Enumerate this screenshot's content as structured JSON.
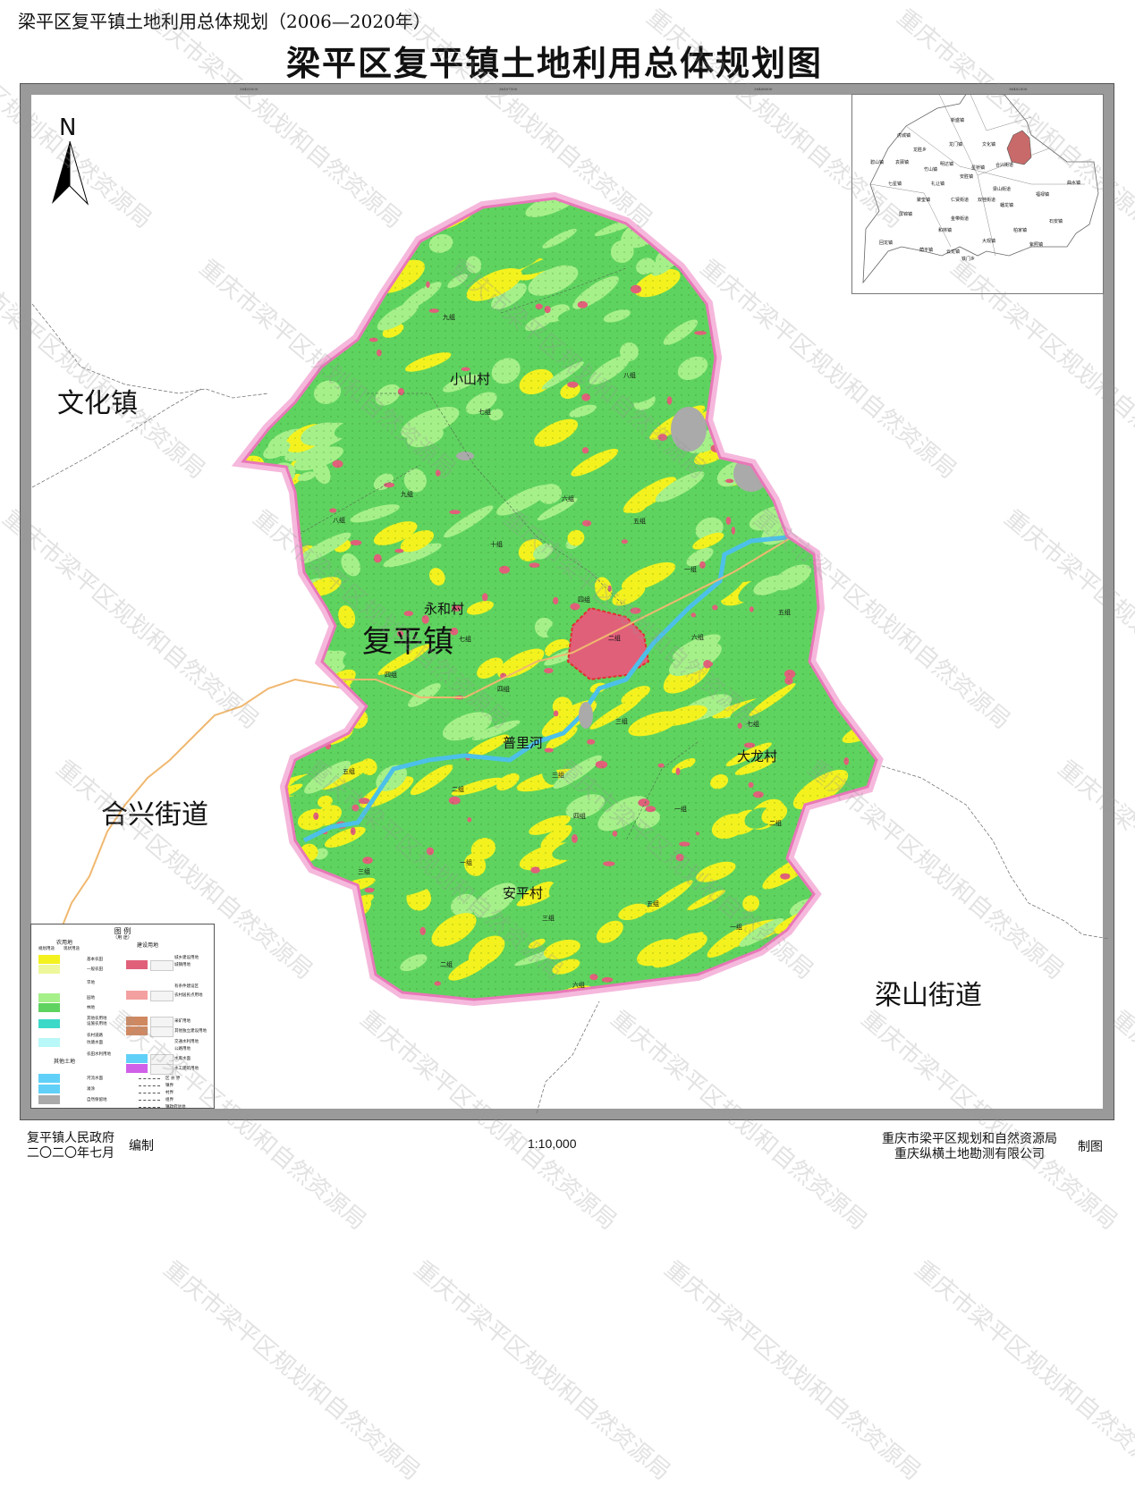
{
  "header": {
    "subtitle": "梁平区复平镇土地利用总体规划（2006—2020年）",
    "title": "梁平区复平镇土地利用总体规划图"
  },
  "north_arrow": {
    "label": "N",
    "icon": "north-arrow-icon"
  },
  "neighbors": {
    "wenhua": "文化镇",
    "hexing": "合兴街道",
    "liangshan": "梁山街道"
  },
  "map_labels": {
    "town": "复平镇",
    "river": "普里河",
    "villages": [
      "小山村",
      "永和村",
      "大龙村",
      "安平村"
    ],
    "groups": [
      "九组",
      "七组",
      "八组",
      "九组",
      "八组",
      "六组",
      "五组",
      "十组",
      "一组",
      "四组",
      "二组",
      "六组",
      "七组",
      "四组",
      "五组",
      "三组",
      "四组",
      "五组",
      "二组",
      "三组",
      "四组",
      "七组",
      "一组",
      "三组",
      "二组",
      "一组",
      "五组",
      "三组",
      "一组",
      "二组",
      "六组"
    ]
  },
  "colors": {
    "boundary": "#f08cc0",
    "forest": "#5fd35f",
    "orchard": "#a6f08a",
    "farmland": "#f4f21e",
    "general_farmland": "#eef79a",
    "urban": "#e0607a",
    "rural_residential": "#f4a0a0",
    "water": "#55c8ee",
    "river": "#4cc0e8",
    "other": "#aaaaaa",
    "road": "#f0b870"
  },
  "inset": {
    "highlight": "复平镇",
    "towns": [
      "新盛镇",
      "虎城镇",
      "龙门镇",
      "文化镇",
      "龙胜乡",
      "碧山镇",
      "袁驿镇",
      "竹山镇",
      "明达镇",
      "星桥镇",
      "合兴街道",
      "七星镇",
      "礼让镇",
      "安胜镇",
      "梁山街道",
      "聚奎镇",
      "仁贤街道",
      "双桂街道",
      "福禄镇",
      "曲水镇",
      "屏锦镇",
      "蟠龙镇",
      "金带街道",
      "和林镇",
      "柏家镇",
      "石安镇",
      "回龙镇",
      "荫平镇",
      "云龙镇",
      "大观镇",
      "紫照镇",
      "铁门乡"
    ]
  },
  "legend": {
    "title": "图  例",
    "subtitle": "（用 途）",
    "agri_heading": "农用地",
    "build_heading": "建设用地",
    "other_heading": "其他土地",
    "col_plan": "规划用途",
    "col_current": "现状用途",
    "items_left": [
      "基本农田",
      "一般农田",
      "旱地",
      "园地",
      "林地",
      "其他农用地",
      "设施农用地",
      "农村道路",
      "坑塘水面",
      "农田水利用地"
    ],
    "items_other": [
      "河流水面",
      "滩涂",
      "自然保留地"
    ],
    "items_right": [
      "城乡建设用地",
      "城镇用地",
      "有条件建设区",
      "农村居民点用地",
      "采矿用地",
      "其他独立建设用地",
      "交通水利用地",
      "公路用地",
      "水库水面",
      "水工建筑用地"
    ],
    "boundaries": [
      "区  县  界",
      "镇界",
      "村界",
      "组界",
      "镇政府驻地"
    ]
  },
  "footer": {
    "left_line1": "复平镇人民政府",
    "left_line2": "二〇二〇年七月",
    "left_role": "编制",
    "scale": "1:10,000",
    "right_line1": "重庆市梁平区规划和自然资源局",
    "right_line2": "重庆纵横土地勘测有限公司",
    "right_role": "制图"
  },
  "frame_coords": [
    "36405000",
    "36407500",
    "36408000",
    "36402500",
    "3407500",
    "3405000",
    "3402500",
    "3400000"
  ],
  "watermark": "重庆市梁平区规划和自然资源局"
}
